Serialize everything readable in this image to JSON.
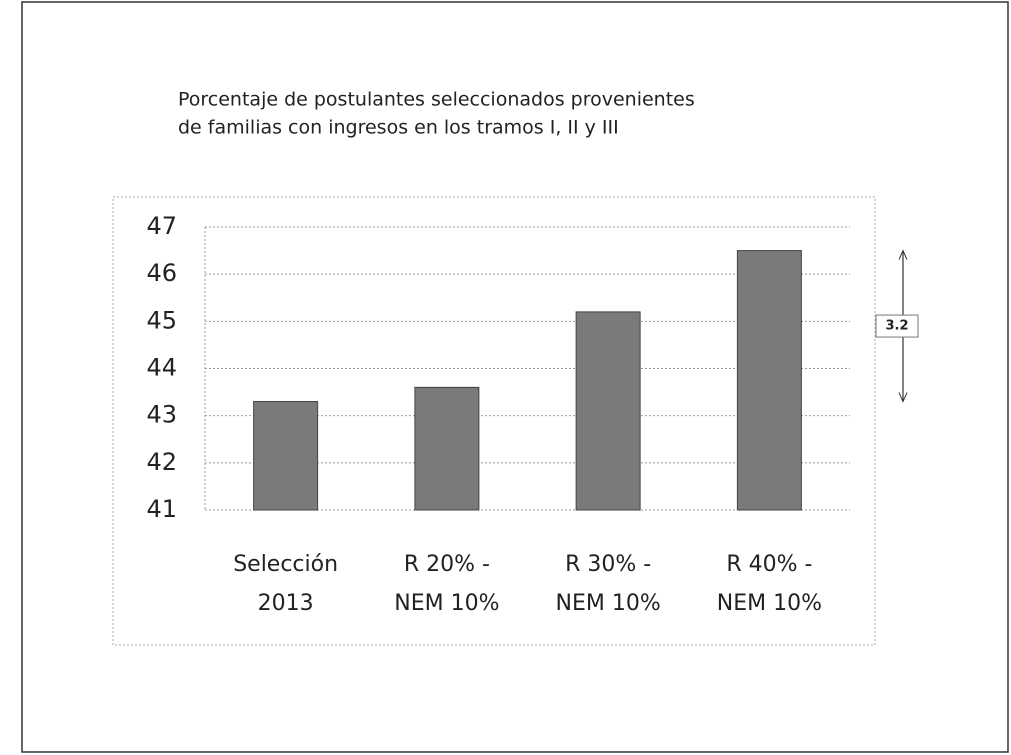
{
  "chart_data": {
    "type": "bar",
    "title": [
      "Porcentaje de postulantes seleccionados provenientes",
      "de familias con ingresos en los tramos I, II y III"
    ],
    "categories": [
      [
        "Selección",
        "2013"
      ],
      [
        "R 20% -",
        "NEM 10%"
      ],
      [
        "R 30% -",
        "NEM 10%"
      ],
      [
        "R 40% -",
        "NEM 10%"
      ]
    ],
    "values": [
      43.3,
      43.6,
      45.2,
      46.5
    ],
    "color": "#7a7a7a",
    "ylim": [
      41,
      47
    ],
    "yticks": [
      41,
      42,
      43,
      44,
      45,
      46,
      47
    ],
    "grid": true,
    "annotations": [
      "3.2"
    ]
  }
}
